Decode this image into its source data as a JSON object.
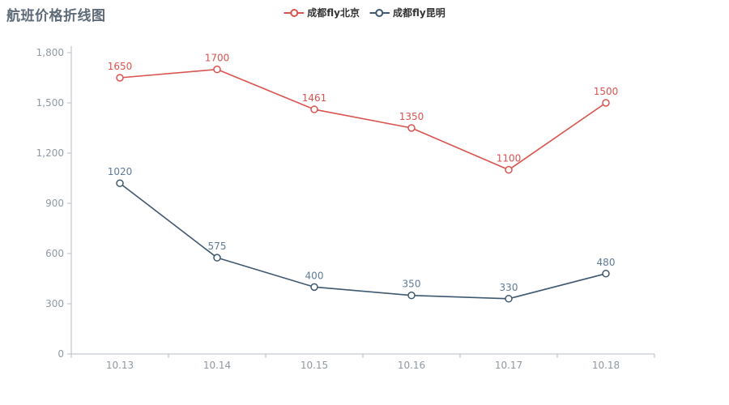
{
  "title": "航班价格折线图",
  "chart_data": {
    "type": "line",
    "x": [
      "10.13",
      "10.14",
      "10.15",
      "10.16",
      "10.17",
      "10.18"
    ],
    "series": [
      {
        "name": "成都fly北京",
        "values": [
          1650,
          1700,
          1461,
          1350,
          1100,
          1500
        ],
        "color": "#d9534f",
        "label_color": "#d9534f"
      },
      {
        "name": "成都fly昆明",
        "values": [
          1020,
          575,
          400,
          350,
          330,
          480
        ],
        "color": "#3e5871",
        "label_color": "#5d7b9a"
      }
    ],
    "title": "航班价格折线图",
    "xlabel": "",
    "ylabel": "",
    "ylim": [
      0,
      1800
    ],
    "y_tick_step": 300,
    "grid": false,
    "legend_position": "top-center",
    "marker_style": "empty-circle",
    "axis_color": "#b4bcc4",
    "tick_label_color": "#8e99a3",
    "legend_text_color": "#333333",
    "background_color": "#ffffff"
  }
}
